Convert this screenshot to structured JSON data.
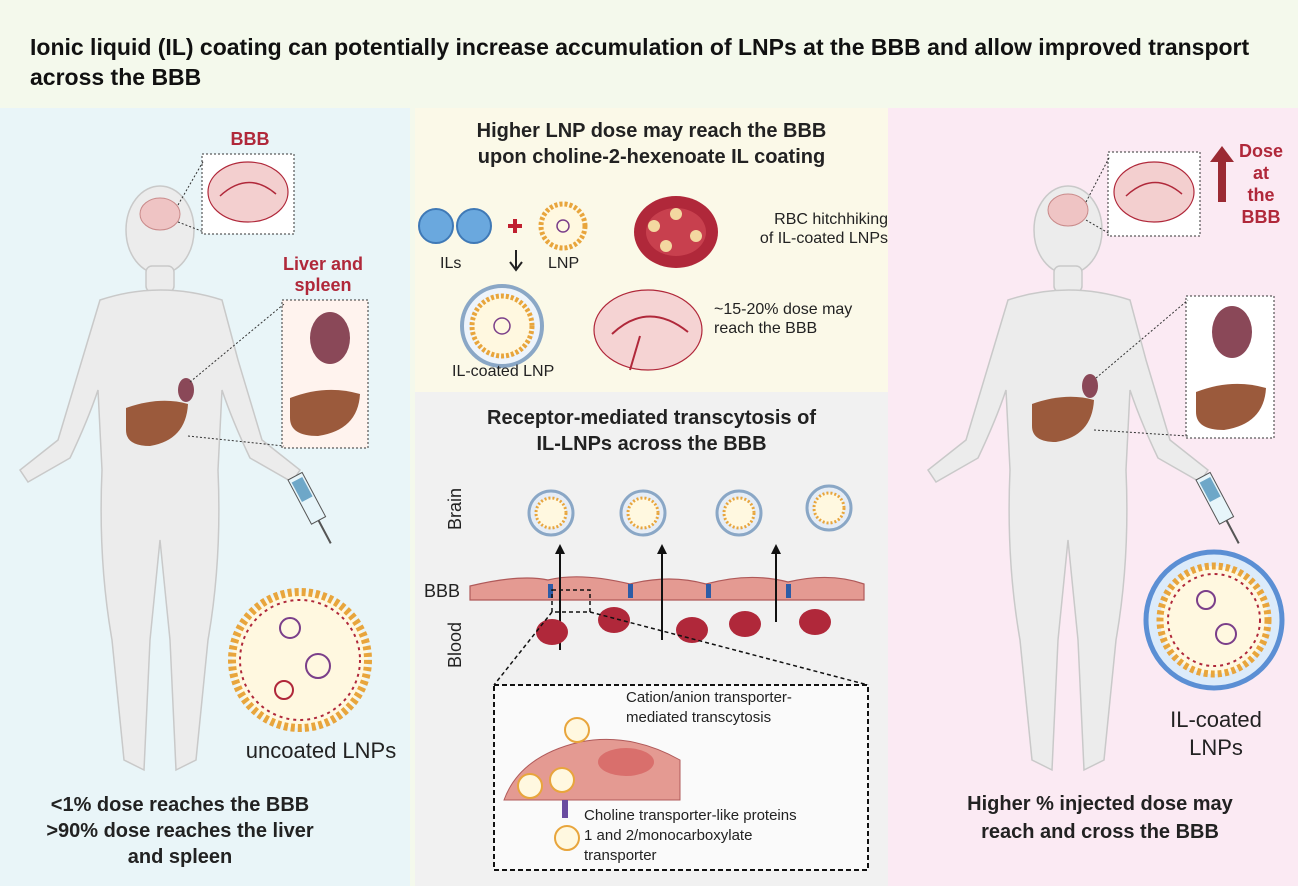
{
  "title": "Ionic liquid (IL) coating can potentially increase accumulation of LNPs at the BBB and allow improved transport across the BBB",
  "left": {
    "bbb_label": "BBB",
    "organs_label": "Liver and spleen",
    "particle_label": "uncoated LNPs",
    "summary": [
      "<1% dose reaches the BBB",
      ">90% dose reaches the liver",
      "and spleen"
    ]
  },
  "middle_top": {
    "heading": [
      "Higher LNP dose may reach the BBB",
      "upon choline-2-hexenoate IL coating"
    ],
    "ils_label": "ILs",
    "lnp_label": "LNP",
    "coated_label": "IL-coated LNP",
    "rbc_label": [
      "RBC hitchhiking",
      "of IL-coated LNPs"
    ],
    "dose_label": [
      "~15-20% dose may",
      "reach the BBB"
    ]
  },
  "middle_bottom": {
    "heading": [
      "Receptor-mediated transcytosis of",
      "IL-LNPs across the BBB"
    ],
    "brain_label": "Brain",
    "bbb_label": "BBB",
    "blood_label": "Blood",
    "inset_label_1": [
      "Cation/anion transporter-",
      "mediated transcytosis"
    ],
    "inset_label_2": [
      "Choline transporter-like proteins",
      "1 and 2/monocarboxylate",
      "transporter"
    ]
  },
  "right": {
    "dose_label": [
      "Dose",
      "at",
      "the",
      "BBB"
    ],
    "particle_label": [
      "IL-coated",
      "LNPs"
    ],
    "summary": [
      "Higher % injected dose may",
      "reach and cross the BBB"
    ]
  },
  "colors": {
    "accent_red": "#b0283a",
    "organ_brown": "#9b5a3c",
    "brain_pink": "#efc4c4",
    "lnp_orange": "#e8a53c",
    "body_grey": "#ebebeb"
  }
}
